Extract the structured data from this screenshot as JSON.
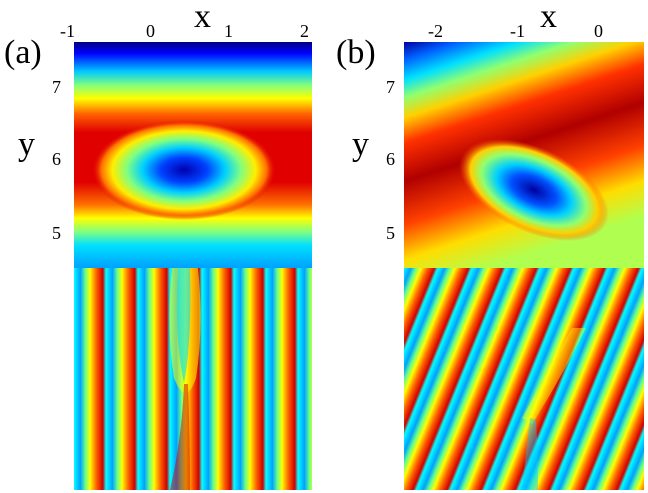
{
  "panels": [
    {
      "letter": "(a)",
      "x_axis_title": "x",
      "y_axis_title": "y",
      "x_ticks": [
        "-1",
        "0",
        "1",
        "2"
      ],
      "y_ticks": [
        "7",
        "6",
        "5"
      ]
    },
    {
      "letter": "(b)",
      "x_axis_title": "x",
      "y_axis_title": "y",
      "x_ticks": [
        "-2",
        "-1",
        "0"
      ],
      "y_ticks": [
        "7",
        "6",
        "5"
      ]
    }
  ],
  "colormap": [
    "#00007f",
    "#0000ff",
    "#00ffff",
    "#ffff00",
    "#ff0000",
    "#7f0000"
  ]
}
